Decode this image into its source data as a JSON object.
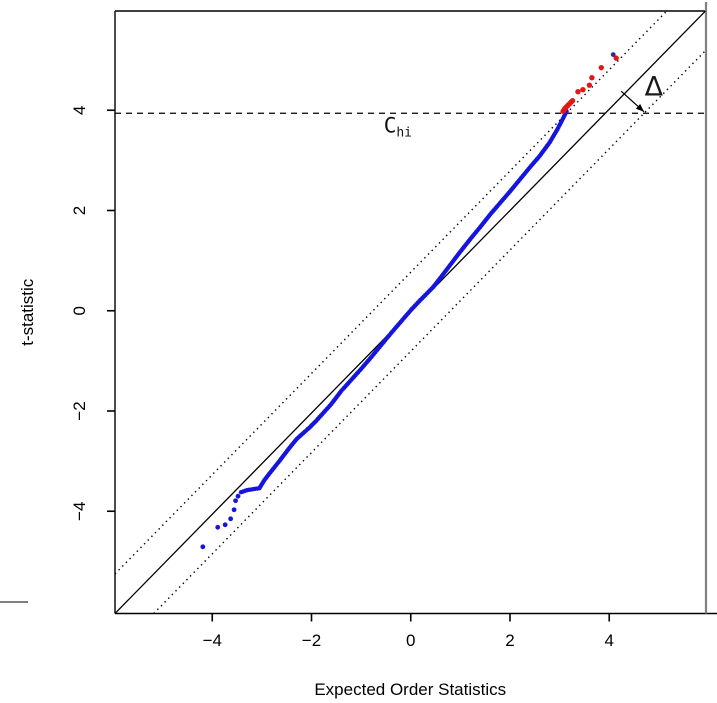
{
  "figure": {
    "xlabel": "Expected Order Statistics",
    "ylabel": "t-statistic"
  },
  "chart_data": {
    "type": "scatter",
    "title": "",
    "xlabel": "Expected Order Statistics",
    "ylabel": "t-statistic",
    "xlim": [
      -5.96,
      5.94
    ],
    "ylim": [
      -6.04,
      5.98
    ],
    "xticks": [
      -4,
      -2,
      0,
      2,
      4
    ],
    "yticks": [
      -4,
      -2,
      0,
      2,
      4
    ],
    "grid": false,
    "legend": "none",
    "colors": {
      "inlier": "#1515dd",
      "outlier": "#e51616",
      "dark_outlier": "#2a2a9a",
      "axis": "#000000",
      "crop_border": "#808080"
    },
    "lines": [
      {
        "name": "identity-line",
        "style": "solid",
        "x1": -5.96,
        "y1": -6.04,
        "x2": 5.94,
        "y2": 5.98,
        "color": "#000000",
        "width": 1.3
      },
      {
        "name": "upper-band-line",
        "style": "dotted",
        "x1": -5.96,
        "y1": -5.25,
        "x2": 5.16,
        "y2": 5.98,
        "color": "#000000",
        "width": 1.4
      },
      {
        "name": "lower-band-line",
        "style": "dotted",
        "x1": -5.18,
        "y1": -6.04,
        "x2": 5.94,
        "y2": 5.19,
        "color": "#000000",
        "width": 1.4
      },
      {
        "name": "threshold-line",
        "style": "dashed",
        "x1": -5.96,
        "y1": 3.94,
        "x2": 5.94,
        "y2": 3.94,
        "color": "#000000",
        "width": 1.3
      }
    ],
    "series": [
      {
        "name": "t-statistic-trail",
        "color": "#1515dd",
        "marker_r": 2.2,
        "densify_step": 0.045,
        "curve_anchors": [
          [
            -3.42,
            -3.62
          ],
          [
            -3.3,
            -3.58
          ],
          [
            -3.18,
            -3.56
          ],
          [
            -3.05,
            -3.54
          ],
          [
            -2.95,
            -3.38
          ],
          [
            -2.85,
            -3.25
          ],
          [
            -2.64,
            -2.99
          ],
          [
            -2.44,
            -2.73
          ],
          [
            -2.3,
            -2.56
          ],
          [
            -2.04,
            -2.33
          ],
          [
            -1.9,
            -2.19
          ],
          [
            -1.6,
            -1.86
          ],
          [
            -1.4,
            -1.6
          ],
          [
            -1.2,
            -1.38
          ],
          [
            -1.0,
            -1.16
          ],
          [
            -0.8,
            -0.93
          ],
          [
            -0.6,
            -0.69
          ],
          [
            -0.4,
            -0.45
          ],
          [
            -0.2,
            -0.22
          ],
          [
            0.0,
            0.01
          ],
          [
            0.2,
            0.22
          ],
          [
            0.45,
            0.47
          ],
          [
            0.6,
            0.66
          ],
          [
            0.8,
            0.92
          ],
          [
            1.0,
            1.18
          ],
          [
            1.2,
            1.43
          ],
          [
            1.4,
            1.67
          ],
          [
            1.6,
            1.92
          ],
          [
            1.8,
            2.15
          ],
          [
            2.0,
            2.38
          ],
          [
            2.2,
            2.62
          ],
          [
            2.4,
            2.86
          ],
          [
            2.6,
            3.09
          ],
          [
            2.8,
            3.36
          ],
          [
            2.95,
            3.61
          ],
          [
            3.05,
            3.8
          ],
          [
            3.11,
            3.92
          ],
          [
            3.14,
            3.98
          ]
        ]
      },
      {
        "name": "lower-tail-points",
        "color": "#1515dd",
        "marker_r": 2.4,
        "points": [
          [
            -4.19,
            -4.71
          ],
          [
            -3.89,
            -4.32
          ],
          [
            -3.74,
            -4.27
          ],
          [
            -3.63,
            -4.15
          ],
          [
            -3.56,
            -3.97
          ],
          [
            -3.53,
            -3.79
          ],
          [
            -3.48,
            -3.7
          ]
        ]
      },
      {
        "name": "flagged-outliers",
        "color": "#e51616",
        "marker_r": 2.7,
        "points": [
          [
            3.07,
            3.98
          ],
          [
            3.09,
            4.01
          ],
          [
            3.11,
            4.04
          ],
          [
            3.14,
            4.07
          ],
          [
            3.17,
            4.1
          ],
          [
            3.2,
            4.13
          ],
          [
            3.23,
            4.16
          ],
          [
            3.26,
            4.19
          ],
          [
            3.37,
            4.37
          ],
          [
            3.47,
            4.41
          ],
          [
            3.6,
            4.5
          ],
          [
            3.65,
            4.65
          ],
          [
            3.84,
            4.85
          ],
          [
            4.14,
            5.04
          ]
        ]
      },
      {
        "name": "dark-outlier",
        "color": "#2a2a9a",
        "marker_r": 2.4,
        "points": [
          [
            4.08,
            5.11
          ]
        ]
      }
    ],
    "annotations": {
      "threshold_label": {
        "text": "C",
        "sub": "hi",
        "x": -0.26,
        "y": 3.7
      },
      "delta_label": {
        "text": "Δ",
        "x": 4.9,
        "y": 4.47
      },
      "delta_arrow": {
        "x1": 4.24,
        "y1": 4.38,
        "x2": 4.7,
        "y2": 3.97
      }
    }
  }
}
